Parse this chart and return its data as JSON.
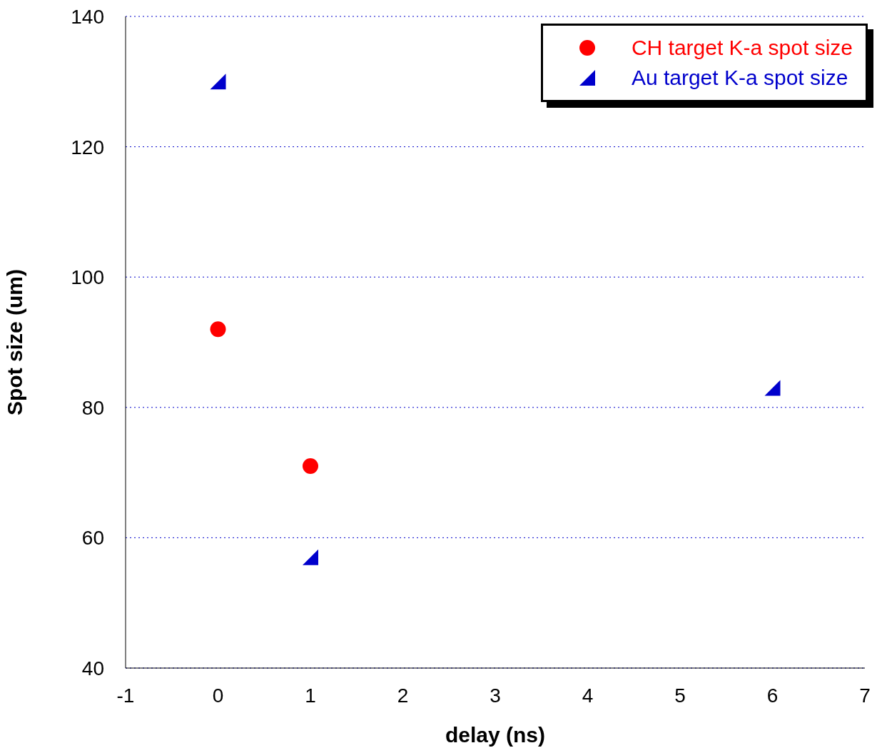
{
  "chart_data": {
    "type": "scatter",
    "xlabel": "delay (ns)",
    "ylabel": "Spot size (um)",
    "xlim": [
      -1,
      7
    ],
    "xticks": [
      -1,
      0,
      1,
      2,
      3,
      4,
      5,
      6,
      7
    ],
    "ylim": [
      40,
      140
    ],
    "yticks": [
      40,
      60,
      80,
      100,
      120,
      140
    ],
    "grid": "y",
    "legend": "top right",
    "series": [
      {
        "name": "CH target K-a spot size",
        "color": "#ff0000",
        "marker": "circle",
        "x": [
          0,
          1
        ],
        "values": [
          92,
          71
        ]
      },
      {
        "name": "Au target K-a spot size",
        "color": "#0000cc",
        "marker": "triangle",
        "x": [
          0,
          1,
          6
        ],
        "values": [
          130,
          57,
          83
        ]
      }
    ]
  }
}
